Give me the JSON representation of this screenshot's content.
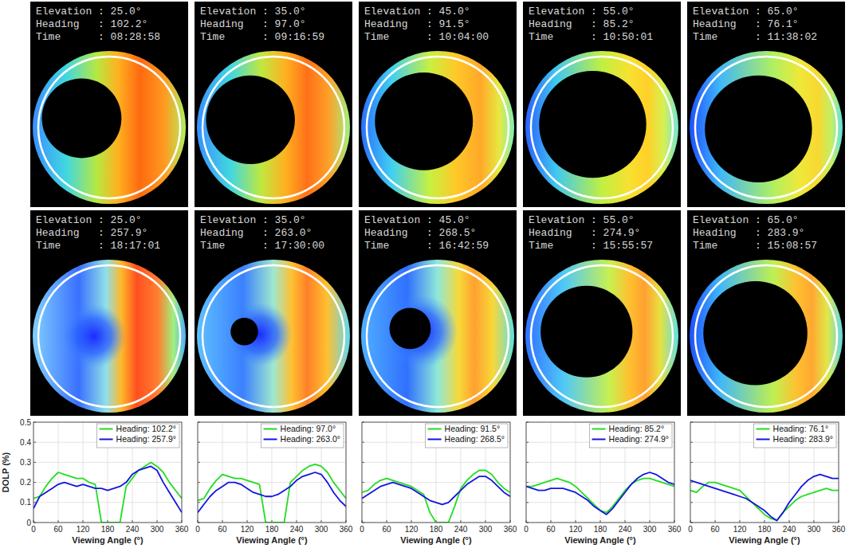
{
  "images": [
    {
      "lines": [
        "Elevation : 25.0°",
        "Heading   : 102.2°",
        "Time      : 08:28:58"
      ]
    },
    {
      "lines": [
        "Elevation : 35.0°",
        "Heading   : 97.0°",
        "Time      : 09:16:59"
      ]
    },
    {
      "lines": [
        "Elevation : 45.0°",
        "Heading   : 91.5°",
        "Time      : 10:04:00"
      ]
    },
    {
      "lines": [
        "Elevation : 55.0°",
        "Heading   : 85.2°",
        "Time      : 10:50:01"
      ]
    },
    {
      "lines": [
        "Elevation : 65.0°",
        "Heading   : 76.1°",
        "Time      : 11:38:02"
      ]
    },
    {
      "lines": [
        "Elevation : 25.0°",
        "Heading   : 257.9°",
        "Time      : 18:17:01"
      ]
    },
    {
      "lines": [
        "Elevation : 35.0°",
        "Heading   : 263.0°",
        "Time      : 17:30:00"
      ]
    },
    {
      "lines": [
        "Elevation : 45.0°",
        "Heading   : 268.5°",
        "Time      : 16:42:59"
      ]
    },
    {
      "lines": [
        "Elevation : 55.0°",
        "Heading   : 274.9°",
        "Time      : 15:55:57"
      ]
    },
    {
      "lines": [
        "Elevation : 65.0°",
        "Heading   : 283.9°",
        "Time      : 15:08:57"
      ]
    }
  ],
  "chart_data": [
    {
      "type": "line",
      "y_label": "DOLP (%)",
      "x_label": "Viewing Angle (°)",
      "x": [
        0,
        15,
        30,
        45,
        60,
        75,
        90,
        105,
        120,
        135,
        150,
        165,
        180,
        195,
        210,
        225,
        240,
        255,
        270,
        285,
        300,
        315,
        330,
        345,
        360
      ],
      "series": [
        {
          "name": "Heading: 102.2°",
          "color": "#22dd22",
          "values": [
            0.12,
            0.13,
            0.18,
            0.22,
            0.25,
            0.24,
            0.23,
            0.22,
            0.22,
            0.2,
            0.19,
            0,
            0,
            0,
            0,
            0.18,
            0.22,
            0.26,
            0.28,
            0.3,
            0.28,
            0.25,
            0.2,
            0.16,
            0.12
          ]
        },
        {
          "name": "Heading: 257.9°",
          "color": "#1414e0",
          "values": [
            0.07,
            0.13,
            0.15,
            0.17,
            0.19,
            0.2,
            0.19,
            0.18,
            0.19,
            0.18,
            0.17,
            0.17,
            0.16,
            0.17,
            0.18,
            0.2,
            0.24,
            0.26,
            0.27,
            0.28,
            0.26,
            0.2,
            0.15,
            0.1,
            0.05
          ]
        }
      ],
      "xlim": [
        0,
        360
      ],
      "ylim": [
        0,
        0.5
      ],
      "xticks": [
        0,
        60,
        120,
        180,
        240,
        300,
        360
      ],
      "yticks": [
        0,
        0.1,
        0.2,
        0.3,
        0.4,
        0.5
      ],
      "grid": true,
      "legend": "upper right",
      "tick_labels": true
    },
    {
      "type": "line",
      "x_label": "Viewing Angle (°)",
      "x": [
        0,
        15,
        30,
        45,
        60,
        75,
        90,
        105,
        120,
        135,
        150,
        165,
        180,
        195,
        210,
        225,
        240,
        255,
        270,
        285,
        300,
        315,
        330,
        345,
        360
      ],
      "series": [
        {
          "name": "Heading: 97.0°",
          "color": "#22dd22",
          "values": [
            0.11,
            0.12,
            0.17,
            0.21,
            0.24,
            0.23,
            0.22,
            0.22,
            0.21,
            0.2,
            0.19,
            0,
            0,
            0,
            0,
            0.2,
            0.23,
            0.26,
            0.28,
            0.29,
            0.28,
            0.25,
            0.2,
            0.16,
            0.12
          ]
        },
        {
          "name": "Heading: 263.0°",
          "color": "#1414e0",
          "values": [
            0.05,
            0.09,
            0.13,
            0.16,
            0.18,
            0.2,
            0.2,
            0.19,
            0.17,
            0.15,
            0.14,
            0.13,
            0.13,
            0.14,
            0.16,
            0.18,
            0.21,
            0.23,
            0.24,
            0.25,
            0.24,
            0.2,
            0.15,
            0.11,
            0.08
          ]
        }
      ],
      "xlim": [
        0,
        360
      ],
      "ylim": [
        0,
        0.5
      ],
      "xticks": [
        0,
        60,
        120,
        180,
        240,
        300,
        360
      ],
      "yticks": [
        0,
        0.1,
        0.2,
        0.3,
        0.4,
        0.5
      ],
      "grid": true,
      "legend": "upper right",
      "tick_labels": "x"
    },
    {
      "type": "line",
      "x_label": "Viewing Angle (°)",
      "x": [
        0,
        15,
        30,
        45,
        60,
        75,
        90,
        105,
        120,
        135,
        150,
        165,
        180,
        195,
        210,
        225,
        240,
        255,
        270,
        285,
        300,
        315,
        330,
        345,
        360
      ],
      "series": [
        {
          "name": "Heading: 91.5°",
          "color": "#22dd22",
          "values": [
            0.15,
            0.16,
            0.19,
            0.21,
            0.22,
            0.21,
            0.2,
            0.19,
            0.18,
            0.16,
            0.14,
            0.05,
            0,
            0,
            0,
            0.08,
            0.17,
            0.21,
            0.24,
            0.26,
            0.26,
            0.24,
            0.2,
            0.17,
            0.15
          ]
        },
        {
          "name": "Heading: 268.5°",
          "color": "#1414e0",
          "values": [
            0.12,
            0.14,
            0.16,
            0.18,
            0.19,
            0.2,
            0.19,
            0.18,
            0.17,
            0.15,
            0.13,
            0.11,
            0.1,
            0.09,
            0.1,
            0.13,
            0.16,
            0.19,
            0.21,
            0.23,
            0.23,
            0.21,
            0.18,
            0.15,
            0.13
          ]
        }
      ],
      "xlim": [
        0,
        360
      ],
      "ylim": [
        0,
        0.5
      ],
      "xticks": [
        0,
        60,
        120,
        180,
        240,
        300,
        360
      ],
      "yticks": [
        0,
        0.1,
        0.2,
        0.3,
        0.4,
        0.5
      ],
      "grid": true,
      "legend": "upper right",
      "tick_labels": "x"
    },
    {
      "type": "line",
      "x_label": "Viewing Angle (°)",
      "x": [
        0,
        15,
        30,
        45,
        60,
        75,
        90,
        105,
        120,
        135,
        150,
        165,
        180,
        195,
        210,
        225,
        240,
        255,
        270,
        285,
        300,
        315,
        330,
        345,
        360
      ],
      "series": [
        {
          "name": "Heading: 85.2°",
          "color": "#22dd22",
          "values": [
            0.18,
            0.18,
            0.19,
            0.2,
            0.21,
            0.22,
            0.21,
            0.2,
            0.18,
            0.15,
            0.12,
            0.09,
            0.06,
            0.05,
            0.08,
            0.12,
            0.16,
            0.19,
            0.21,
            0.22,
            0.22,
            0.21,
            0.2,
            0.19,
            0.18
          ]
        },
        {
          "name": "Heading: 274.9°",
          "color": "#1414e0",
          "values": [
            0.18,
            0.17,
            0.16,
            0.16,
            0.17,
            0.17,
            0.17,
            0.16,
            0.15,
            0.13,
            0.11,
            0.08,
            0.06,
            0.04,
            0.07,
            0.11,
            0.15,
            0.19,
            0.22,
            0.24,
            0.25,
            0.24,
            0.22,
            0.2,
            0.19
          ]
        }
      ],
      "xlim": [
        0,
        360
      ],
      "ylim": [
        0,
        0.5
      ],
      "xticks": [
        0,
        60,
        120,
        180,
        240,
        300,
        360
      ],
      "yticks": [
        0,
        0.1,
        0.2,
        0.3,
        0.4,
        0.5
      ],
      "grid": true,
      "legend": "upper right",
      "tick_labels": "x"
    },
    {
      "type": "line",
      "x_label": "Viewing Angle (°)",
      "x": [
        0,
        15,
        30,
        45,
        60,
        75,
        90,
        105,
        120,
        135,
        150,
        165,
        180,
        195,
        210,
        225,
        240,
        255,
        270,
        285,
        300,
        315,
        330,
        345,
        360
      ],
      "series": [
        {
          "name": "Heading: 76.1°",
          "color": "#22dd22",
          "values": [
            0.16,
            0.15,
            0.18,
            0.2,
            0.2,
            0.19,
            0.18,
            0.17,
            0.16,
            0.13,
            0.1,
            0.07,
            0.04,
            0.02,
            0.01,
            0.05,
            0.08,
            0.11,
            0.13,
            0.14,
            0.15,
            0.16,
            0.17,
            0.16,
            0.16
          ]
        },
        {
          "name": "Heading: 283.9°",
          "color": "#1414e0",
          "values": [
            0.21,
            0.2,
            0.19,
            0.18,
            0.17,
            0.16,
            0.15,
            0.14,
            0.13,
            0.12,
            0.1,
            0.08,
            0.06,
            0.03,
            0.01,
            0.05,
            0.1,
            0.14,
            0.18,
            0.21,
            0.23,
            0.24,
            0.23,
            0.22,
            0.22
          ]
        }
      ],
      "xlim": [
        0,
        360
      ],
      "ylim": [
        0,
        0.5
      ],
      "xticks": [
        0,
        60,
        120,
        180,
        240,
        300,
        360
      ],
      "yticks": [
        0,
        0.1,
        0.2,
        0.3,
        0.4,
        0.5
      ],
      "grid": true,
      "legend": "upper right",
      "tick_labels": "x"
    }
  ]
}
